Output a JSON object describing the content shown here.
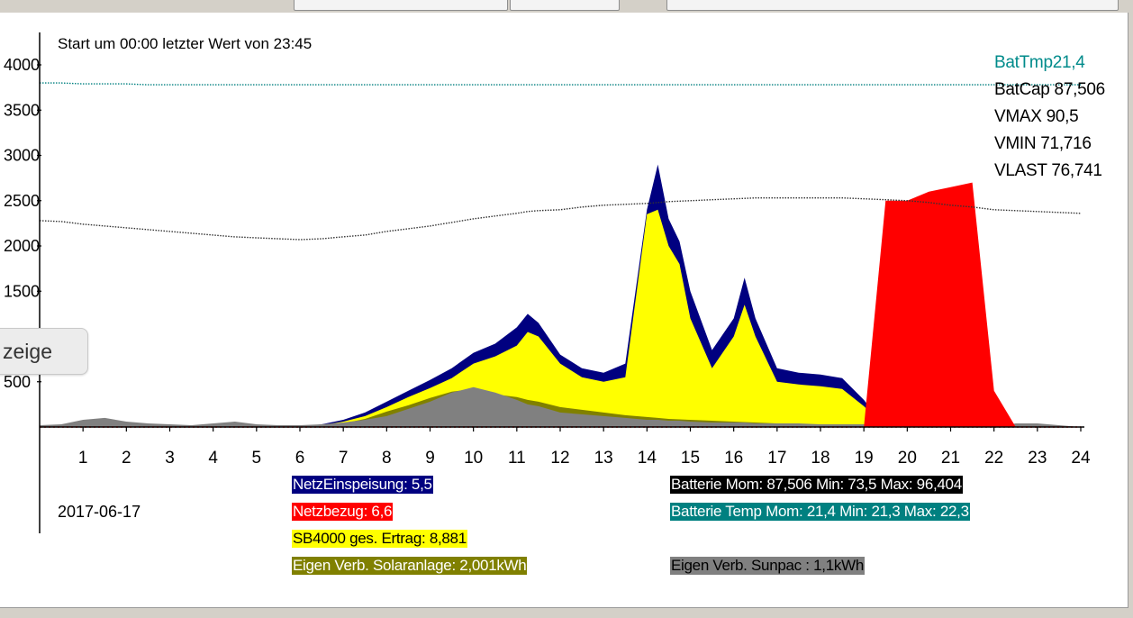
{
  "header_text": "Start um 00:00 letzter Wert von 23:45",
  "date": "2017-06-17",
  "floating_button": {
    "label": "zeige"
  },
  "colors": {
    "netz_einspeisung": "#000080",
    "netzbezug": "#ff0000",
    "sb4000": "#ffff00",
    "eigen_solar": "#808000",
    "eigen_sunpac": "#808080",
    "battery_temp": "#008080",
    "battery_cap": "#333333"
  },
  "right_labels": [
    {
      "text": "BatTmp21,4",
      "color": "#008b8b"
    },
    {
      "text": "BatCap 87,506",
      "color": "#000000"
    },
    {
      "text": "VMAX 90,5",
      "color": "#000000"
    },
    {
      "text": "VMIN 71,716",
      "color": "#000000"
    },
    {
      "text": "VLAST 76,741",
      "color": "#000000"
    }
  ],
  "legend": [
    {
      "text": "NetzEinspeisung: 5,5",
      "bg": "#000080",
      "fg": "#ffffff"
    },
    {
      "text": "Netzbezug: 6,6",
      "bg": "#ff0000",
      "fg": "#ffffff"
    },
    {
      "text": "SB4000 ges. Ertrag: 8,881",
      "bg": "#ffff00",
      "fg": "#000000"
    },
    {
      "text": "Eigen Verb. Solaranlage: 2,001kWh",
      "bg": "#808000",
      "fg": "#ffffff"
    },
    {
      "text": "Batterie Mom: 87,506 Min: 73,5 Max: 96,404",
      "bg": "#000000",
      "fg": "#ffffff"
    },
    {
      "text": "Batterie Temp Mom: 21,4 Min: 21,3 Max: 22,3",
      "bg": "#008080",
      "fg": "#ffffff"
    },
    {
      "text": "Eigen Verb. Sunpac : 1,1kWh",
      "bg": "#808080",
      "fg": "#000000"
    }
  ],
  "chart_data": {
    "type": "area",
    "title": "Start um 00:00 letzter Wert von 23:45",
    "xlim": [
      0,
      24
    ],
    "ylim": [
      0,
      4000
    ],
    "x_ticks": [
      "1",
      "2",
      "3",
      "4",
      "5",
      "6",
      "7",
      "8",
      "9",
      "10",
      "11",
      "12",
      "13",
      "14",
      "15",
      "16",
      "17",
      "18",
      "19",
      "20",
      "21",
      "22",
      "23",
      "24"
    ],
    "y_ticks": [
      "4000",
      "3500",
      "3000",
      "2500",
      "2000",
      "1500",
      "500"
    ],
    "hours": [
      0,
      0.5,
      1,
      1.5,
      2,
      2.5,
      3,
      3.5,
      4,
      4.5,
      5,
      5.5,
      6,
      6.5,
      7,
      7.5,
      8,
      8.5,
      9,
      9.5,
      10,
      10.5,
      11,
      11.25,
      11.5,
      12,
      12.5,
      13,
      13.5,
      14,
      14.25,
      14.5,
      14.75,
      15,
      15.5,
      16,
      16.25,
      16.5,
      17,
      17.5,
      18,
      18.5,
      19,
      19.5,
      20,
      20.5,
      21,
      21.5,
      22,
      22.5,
      23,
      23.5,
      24
    ],
    "series": [
      {
        "name": "NetzEinspeisung",
        "values": [
          0,
          0,
          0,
          0,
          0,
          0,
          0,
          0,
          0,
          0,
          0,
          0,
          0,
          30,
          80,
          160,
          280,
          400,
          520,
          650,
          820,
          920,
          1100,
          1250,
          1150,
          800,
          650,
          600,
          700,
          2400,
          2900,
          2300,
          2050,
          1500,
          850,
          1200,
          1650,
          1200,
          650,
          600,
          580,
          540,
          300,
          0,
          0,
          0,
          0,
          0,
          0,
          0,
          0,
          0,
          0
        ]
      },
      {
        "name": "SB4000 ges. Ertrag",
        "values": [
          0,
          0,
          0,
          0,
          0,
          0,
          0,
          0,
          0,
          0,
          0,
          0,
          0,
          20,
          60,
          120,
          220,
          330,
          430,
          540,
          700,
          780,
          900,
          1050,
          1000,
          700,
          550,
          500,
          550,
          2350,
          2400,
          2000,
          1800,
          1200,
          650,
          1000,
          1350,
          1000,
          500,
          470,
          450,
          420,
          230,
          0,
          0,
          0,
          0,
          0,
          0,
          0,
          0,
          0,
          0
        ]
      },
      {
        "name": "Netzbezug",
        "values": [
          0,
          0,
          0,
          0,
          0,
          0,
          0,
          0,
          0,
          0,
          0,
          0,
          0,
          0,
          0,
          0,
          0,
          0,
          0,
          0,
          0,
          0,
          0,
          0,
          0,
          0,
          0,
          0,
          0,
          0,
          0,
          0,
          0,
          0,
          0,
          0,
          0,
          0,
          0,
          0,
          0,
          0,
          0,
          2500,
          2500,
          2600,
          2650,
          2700,
          400,
          0,
          0,
          0,
          0
        ]
      },
      {
        "name": "Eigen Verb. Solaranlage",
        "values": [
          0,
          0,
          0,
          0,
          0,
          0,
          0,
          0,
          0,
          0,
          0,
          0,
          0,
          10,
          40,
          90,
          170,
          240,
          320,
          390,
          420,
          360,
          330,
          300,
          280,
          220,
          190,
          160,
          130,
          110,
          100,
          90,
          85,
          80,
          70,
          60,
          55,
          50,
          40,
          30,
          20,
          10,
          0,
          0,
          0,
          0,
          0,
          0,
          0,
          0,
          0,
          0,
          0
        ]
      },
      {
        "name": "Eigen Verb. Sunpac",
        "values": [
          20,
          30,
          80,
          100,
          60,
          40,
          30,
          20,
          40,
          60,
          30,
          20,
          20,
          30,
          50,
          80,
          120,
          200,
          280,
          380,
          440,
          380,
          300,
          250,
          230,
          160,
          140,
          120,
          100,
          80,
          80,
          70,
          70,
          60,
          50,
          50,
          50,
          40,
          40,
          40,
          30,
          30,
          30,
          20,
          0,
          1000,
          40,
          20,
          0,
          40,
          40,
          20,
          0
        ]
      },
      {
        "name": "BatCap",
        "values": [
          2280,
          2270,
          2240,
          2220,
          2200,
          2180,
          2160,
          2140,
          2120,
          2100,
          2090,
          2080,
          2070,
          2080,
          2100,
          2120,
          2160,
          2190,
          2220,
          2260,
          2300,
          2330,
          2360,
          2380,
          2390,
          2400,
          2430,
          2450,
          2460,
          2470,
          2480,
          2490,
          2495,
          2500,
          2510,
          2520,
          2525,
          2530,
          2530,
          2530,
          2530,
          2530,
          2520,
          2510,
          2500,
          2480,
          2450,
          2430,
          2400,
          2390,
          2380,
          2370,
          2360
        ]
      },
      {
        "name": "BatTmp",
        "values": [
          3800,
          3800,
          3790,
          3790,
          3790,
          3780,
          3780,
          3780,
          3780,
          3780,
          3780,
          3780,
          3780,
          3780,
          3780,
          3780,
          3780,
          3780,
          3780,
          3780,
          3780,
          3780,
          3780,
          3780,
          3780,
          3780,
          3780,
          3780,
          3780,
          3780,
          3780,
          3780,
          3780,
          3780,
          3780,
          3780,
          3780,
          3780,
          3780,
          3780,
          3780,
          3780,
          3780,
          3780,
          3780,
          3780,
          3780,
          3780,
          3780,
          3780,
          3780,
          3780,
          3780
        ]
      }
    ]
  }
}
